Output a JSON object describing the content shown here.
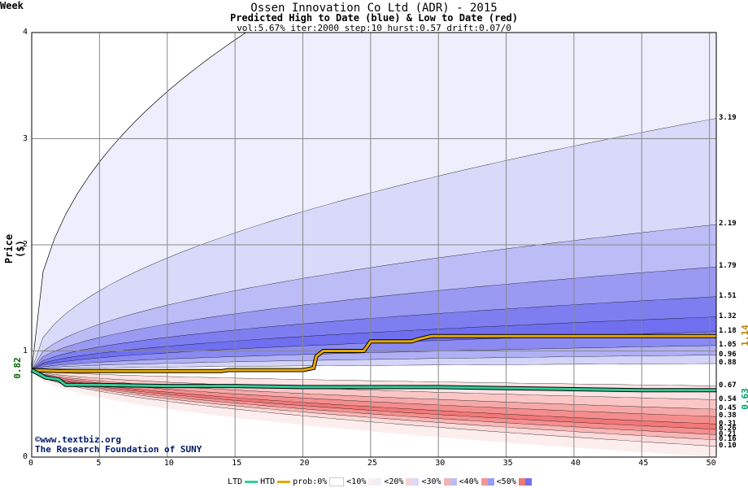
{
  "header": {
    "title": "Ossen Innovation Co Ltd (ADR) - 2015",
    "subtitle": "Predicted High to Date (blue) &  Low to Date (red)",
    "params": "vol:5.67% iter:2000 step:10 hurst:0.57 drift:0.07/0"
  },
  "credits": {
    "line1": "©www.textbiz.org",
    "line2": "The Research Foundation of SUNY"
  },
  "legend": {
    "ltd": "LTD",
    "htd": "HTD",
    "prob": "prob:0%",
    "p10": "<10%",
    "p20": "<20%",
    "p30": "<30%",
    "p40": "<40%",
    "p50": "<50%"
  },
  "colors": {
    "ltd_line": "#33cc99",
    "htd_line": "#e6a800",
    "blue_band_light": "#eeeefc",
    "blue_band_dark": "#6f6ff0",
    "red_band_light": "#fdeeee",
    "red_band_dark": "#f27878",
    "grid": "#888888"
  },
  "chart_data": {
    "type": "area",
    "xlabel": "Week",
    "ylabel": "Price ($)",
    "xlim": [
      0,
      50.5
    ],
    "ylim": [
      0,
      4
    ],
    "x_ticks": [
      0,
      5,
      10,
      15,
      20,
      25,
      30,
      35,
      40,
      45,
      50
    ],
    "y_ticks": [
      0,
      1,
      2,
      3,
      4
    ],
    "start_price": 0.82,
    "start_price_label": "0.82",
    "htd_final": 1.14,
    "htd_final_label": "1.14",
    "ltd_final": 0.63,
    "ltd_final_label": "0.63",
    "blue_quantile_ends": [
      3.19,
      2.19,
      1.79,
      1.51,
      1.32,
      1.18,
      1.05,
      0.96,
      0.88
    ],
    "blue_quantile_labels": [
      "3.19",
      "2.19",
      "1.79",
      "1.51",
      "1.32",
      "1.18",
      "1.05",
      "0.96",
      "0.88"
    ],
    "red_quantile_ends": [
      0.67,
      0.54,
      0.45,
      0.38,
      0.31,
      0.26,
      0.21,
      0.16,
      0.1
    ],
    "red_quantile_labels": [
      "0.67",
      "0.54",
      "0.45",
      "0.38",
      "0.31",
      "0.26",
      "0.21",
      "0.16",
      "0.10"
    ],
    "htd_series": {
      "x": [
        0,
        2,
        5,
        10,
        14,
        14.5,
        20,
        20.8,
        21,
        21.5,
        24.5,
        25,
        28,
        28.5,
        29.5,
        35,
        40,
        45,
        50.5
      ],
      "y": [
        0.82,
        0.81,
        0.81,
        0.81,
        0.81,
        0.82,
        0.82,
        0.84,
        0.95,
        1.0,
        1.0,
        1.09,
        1.09,
        1.11,
        1.14,
        1.14,
        1.14,
        1.14,
        1.14
      ]
    },
    "ltd_series": {
      "x": [
        0,
        1,
        2,
        2.5,
        5,
        10,
        15,
        20,
        25,
        30,
        35,
        40,
        45,
        50.5
      ],
      "y": [
        0.82,
        0.75,
        0.73,
        0.68,
        0.68,
        0.67,
        0.67,
        0.66,
        0.66,
        0.66,
        0.65,
        0.64,
        0.63,
        0.63
      ]
    },
    "grid": true,
    "legend_position": "bottom"
  }
}
